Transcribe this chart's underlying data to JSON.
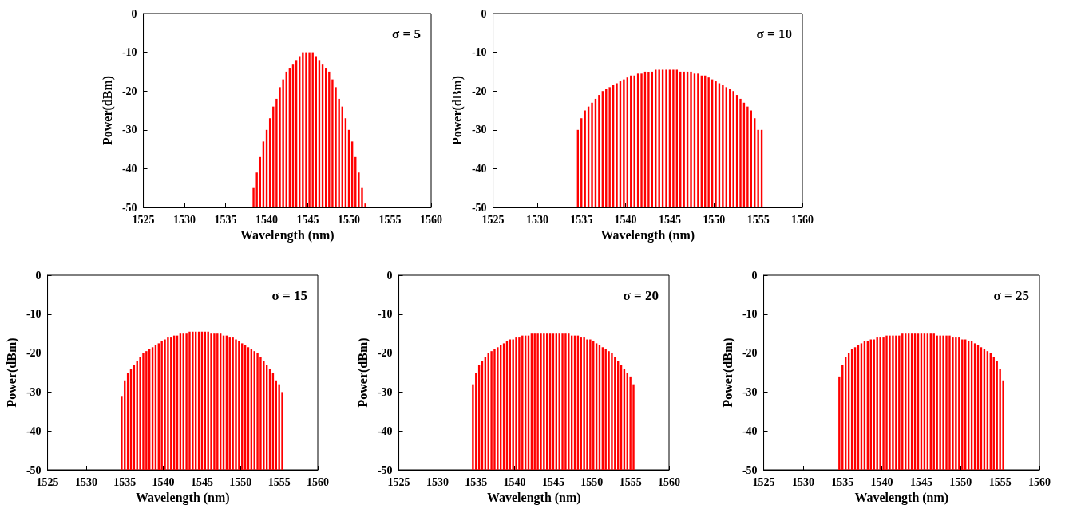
{
  "chart_data": [
    {
      "type": "bar",
      "title": "σ = 5",
      "xlabel": "Wavelength (nm)",
      "ylabel": "Power(dBm)",
      "color": "#ff0000",
      "xlim": [
        1525,
        1560
      ],
      "xticks": [
        1525,
        1530,
        1535,
        1540,
        1545,
        1550,
        1555,
        1560
      ],
      "ylim": [
        -50,
        0
      ],
      "yticks": [
        -50,
        -40,
        -30,
        -20,
        -10,
        0
      ],
      "x": [
        1538.4,
        1538.8,
        1539.2,
        1539.6,
        1540.0,
        1540.4,
        1540.8,
        1541.2,
        1541.6,
        1542.0,
        1542.4,
        1542.8,
        1543.2,
        1543.6,
        1544.0,
        1544.4,
        1544.8,
        1545.2,
        1545.6,
        1546.0,
        1546.4,
        1546.8,
        1547.2,
        1547.6,
        1548.0,
        1548.4,
        1548.8,
        1549.2,
        1549.6,
        1550.0,
        1550.4,
        1550.8,
        1551.2,
        1551.6,
        1552.0
      ],
      "base": [
        -50,
        -50,
        -50,
        -50,
        -50,
        -50,
        -50,
        -50,
        -50,
        -50,
        -50,
        -50,
        -50,
        -50,
        -50,
        -50,
        -50,
        -50,
        -50,
        -50,
        -50,
        -50,
        -50,
        -50,
        -50,
        -50,
        -50,
        -50,
        -50,
        -50,
        -50,
        -50,
        -50,
        -50,
        -50
      ],
      "values": [
        5,
        9,
        13,
        17,
        20,
        23,
        26,
        28,
        31,
        33,
        35,
        36,
        37,
        38,
        39,
        40,
        40,
        40,
        40,
        39,
        38,
        37,
        36,
        35,
        33,
        31,
        28,
        26,
        23,
        20,
        17,
        13,
        9,
        5,
        1
      ]
    },
    {
      "type": "bar",
      "title": "σ = 10",
      "xlabel": "Wavelength (nm)",
      "ylabel": "Power(dBm)",
      "color": "#ff0000",
      "xlim": [
        1525,
        1560
      ],
      "xticks": [
        1525,
        1530,
        1535,
        1540,
        1545,
        1550,
        1555,
        1560
      ],
      "ylim": [
        -50,
        0
      ],
      "yticks": [
        -50,
        -40,
        -30,
        -20,
        -10,
        0
      ],
      "x": [
        1534.6,
        1535.0,
        1535.4,
        1535.8,
        1536.2,
        1536.6,
        1537.0,
        1537.4,
        1537.8,
        1538.2,
        1538.6,
        1539.0,
        1539.4,
        1539.8,
        1540.2,
        1540.6,
        1541.0,
        1541.4,
        1541.8,
        1542.2,
        1542.6,
        1543.0,
        1543.4,
        1543.8,
        1544.2,
        1544.6,
        1545.0,
        1545.4,
        1545.8,
        1546.2,
        1546.6,
        1547.0,
        1547.4,
        1547.8,
        1548.2,
        1548.6,
        1549.0,
        1549.4,
        1549.8,
        1550.2,
        1550.6,
        1551.0,
        1551.4,
        1551.8,
        1552.2,
        1552.6,
        1553.0,
        1553.4,
        1553.8,
        1554.2,
        1554.6,
        1555.0,
        1555.4
      ],
      "base": [
        -50,
        -50,
        -50,
        -50,
        -50,
        -50,
        -50,
        -50,
        -50,
        -50,
        -50,
        -50,
        -50,
        -50,
        -50,
        -50,
        -50,
        -50,
        -50,
        -50,
        -50,
        -50,
        -50,
        -50,
        -50,
        -50,
        -50,
        -50,
        -50,
        -50,
        -50,
        -50,
        -50,
        -50,
        -50,
        -50,
        -50,
        -50,
        -50,
        -50,
        -50,
        -50,
        -50,
        -50,
        -50,
        -50,
        -50,
        -50,
        -50,
        -50,
        -50,
        -50,
        -50
      ],
      "values": [
        20,
        23,
        25,
        26,
        27,
        28,
        29,
        30,
        30.5,
        31,
        31.5,
        32,
        32.5,
        33,
        33.5,
        34,
        34,
        34.5,
        34.5,
        35,
        35,
        35,
        35.5,
        35.5,
        35.5,
        35.5,
        35.5,
        35.5,
        35.5,
        35,
        35,
        35,
        35,
        34.5,
        34.5,
        34,
        34,
        33.5,
        33,
        32.5,
        32,
        31.5,
        31,
        30.5,
        30,
        29,
        28,
        27,
        26,
        25,
        23,
        20,
        20
      ]
    },
    {
      "type": "bar",
      "title": "σ = 15",
      "xlabel": "Wavelength (nm)",
      "ylabel": "Power(dBm)",
      "color": "#ff0000",
      "xlim": [
        1525,
        1560
      ],
      "xticks": [
        1525,
        1530,
        1535,
        1540,
        1545,
        1550,
        1555,
        1560
      ],
      "ylim": [
        -50,
        0
      ],
      "yticks": [
        -50,
        -40,
        -30,
        -20,
        -10,
        0
      ],
      "x": [
        1534.6,
        1535.0,
        1535.4,
        1535.8,
        1536.2,
        1536.6,
        1537.0,
        1537.4,
        1537.8,
        1538.2,
        1538.6,
        1539.0,
        1539.4,
        1539.8,
        1540.2,
        1540.6,
        1541.0,
        1541.4,
        1541.8,
        1542.2,
        1542.6,
        1543.0,
        1543.4,
        1543.8,
        1544.2,
        1544.6,
        1545.0,
        1545.4,
        1545.8,
        1546.2,
        1546.6,
        1547.0,
        1547.4,
        1547.8,
        1548.2,
        1548.6,
        1549.0,
        1549.4,
        1549.8,
        1550.2,
        1550.6,
        1551.0,
        1551.4,
        1551.8,
        1552.2,
        1552.6,
        1553.0,
        1553.4,
        1553.8,
        1554.2,
        1554.6,
        1555.0,
        1555.4
      ],
      "base": [
        -50,
        -50,
        -50,
        -50,
        -50,
        -50,
        -50,
        -50,
        -50,
        -50,
        -50,
        -50,
        -50,
        -50,
        -50,
        -50,
        -50,
        -50,
        -50,
        -50,
        -50,
        -50,
        -50,
        -50,
        -50,
        -50,
        -50,
        -50,
        -50,
        -50,
        -50,
        -50,
        -50,
        -50,
        -50,
        -50,
        -50,
        -50,
        -50,
        -50,
        -50,
        -50,
        -50,
        -50,
        -50,
        -50,
        -50,
        -50,
        -50,
        -50,
        -50,
        -50,
        -50
      ],
      "values": [
        19,
        23,
        25,
        26,
        27,
        28,
        29,
        30,
        30.5,
        31,
        31.5,
        32,
        32.5,
        33,
        33.5,
        34,
        34,
        34.5,
        34.5,
        35,
        35,
        35,
        35.5,
        35.5,
        35.5,
        35.5,
        35.5,
        35.5,
        35.5,
        35,
        35,
        35,
        35,
        34.5,
        34.5,
        34,
        34,
        33.5,
        33,
        32.5,
        32,
        31.5,
        31,
        30.5,
        30,
        29,
        28,
        27,
        26,
        25,
        23,
        22,
        20
      ]
    },
    {
      "type": "bar",
      "title": "σ = 20",
      "xlabel": "Wavelength (nm)",
      "ylabel": "Power(dBm)",
      "color": "#ff0000",
      "xlim": [
        1525,
        1560
      ],
      "xticks": [
        1525,
        1530,
        1535,
        1540,
        1545,
        1550,
        1555,
        1560
      ],
      "ylim": [
        -50,
        0
      ],
      "yticks": [
        -50,
        -40,
        -30,
        -20,
        -10,
        0
      ],
      "x": [
        1534.6,
        1535.0,
        1535.4,
        1535.8,
        1536.2,
        1536.6,
        1537.0,
        1537.4,
        1537.8,
        1538.2,
        1538.6,
        1539.0,
        1539.4,
        1539.8,
        1540.2,
        1540.6,
        1541.0,
        1541.4,
        1541.8,
        1542.2,
        1542.6,
        1543.0,
        1543.4,
        1543.8,
        1544.2,
        1544.6,
        1545.0,
        1545.4,
        1545.8,
        1546.2,
        1546.6,
        1547.0,
        1547.4,
        1547.8,
        1548.2,
        1548.6,
        1549.0,
        1549.4,
        1549.8,
        1550.2,
        1550.6,
        1551.0,
        1551.4,
        1551.8,
        1552.2,
        1552.6,
        1553.0,
        1553.4,
        1553.8,
        1554.2,
        1554.6,
        1555.0,
        1555.4
      ],
      "base": [
        -50,
        -50,
        -50,
        -50,
        -50,
        -50,
        -50,
        -50,
        -50,
        -50,
        -50,
        -50,
        -50,
        -50,
        -50,
        -50,
        -50,
        -50,
        -50,
        -50,
        -50,
        -50,
        -50,
        -50,
        -50,
        -50,
        -50,
        -50,
        -50,
        -50,
        -50,
        -50,
        -50,
        -50,
        -50,
        -50,
        -50,
        -50,
        -50,
        -50,
        -50,
        -50,
        -50,
        -50,
        -50,
        -50,
        -50,
        -50,
        -50,
        -50,
        -50,
        -50,
        -50
      ],
      "values": [
        22,
        25,
        27,
        28,
        29,
        30,
        30.5,
        31,
        31.5,
        32,
        32.5,
        33,
        33.5,
        33.5,
        34,
        34,
        34.5,
        34.5,
        34.5,
        35,
        35,
        35,
        35,
        35,
        35,
        35,
        35,
        35,
        35,
        35,
        35,
        35,
        34.5,
        34.5,
        34.5,
        34,
        34,
        33.5,
        33.5,
        33,
        32.5,
        32,
        31.5,
        31,
        30.5,
        30,
        29,
        28,
        27,
        26,
        25,
        24,
        22
      ]
    },
    {
      "type": "bar",
      "title": "σ = 25",
      "xlabel": "Wavelength (nm)",
      "ylabel": "Power(dBm)",
      "color": "#ff0000",
      "xlim": [
        1525,
        1560
      ],
      "xticks": [
        1525,
        1530,
        1535,
        1540,
        1545,
        1550,
        1555,
        1560
      ],
      "ylim": [
        -50,
        0
      ],
      "yticks": [
        -50,
        -40,
        -30,
        -20,
        -10,
        0
      ],
      "x": [
        1534.6,
        1535.0,
        1535.4,
        1535.8,
        1536.2,
        1536.6,
        1537.0,
        1537.4,
        1537.8,
        1538.2,
        1538.6,
        1539.0,
        1539.4,
        1539.8,
        1540.2,
        1540.6,
        1541.0,
        1541.4,
        1541.8,
        1542.2,
        1542.6,
        1543.0,
        1543.4,
        1543.8,
        1544.2,
        1544.6,
        1545.0,
        1545.4,
        1545.8,
        1546.2,
        1546.6,
        1547.0,
        1547.4,
        1547.8,
        1548.2,
        1548.6,
        1549.0,
        1549.4,
        1549.8,
        1550.2,
        1550.6,
        1551.0,
        1551.4,
        1551.8,
        1552.2,
        1552.6,
        1553.0,
        1553.4,
        1553.8,
        1554.2,
        1554.6,
        1555.0,
        1555.4
      ],
      "base": [
        -50,
        -50,
        -50,
        -50,
        -50,
        -50,
        -50,
        -50,
        -50,
        -50,
        -50,
        -50,
        -50,
        -50,
        -50,
        -50,
        -50,
        -50,
        -50,
        -50,
        -50,
        -50,
        -50,
        -50,
        -50,
        -50,
        -50,
        -50,
        -50,
        -50,
        -50,
        -50,
        -50,
        -50,
        -50,
        -50,
        -50,
        -50,
        -50,
        -50,
        -50,
        -50,
        -50,
        -50,
        -50,
        -50,
        -50,
        -50,
        -50,
        -50,
        -50,
        -50,
        -50
      ],
      "values": [
        24,
        27,
        29,
        30,
        31,
        31.5,
        32,
        32.5,
        33,
        33,
        33.5,
        33.5,
        34,
        34,
        34,
        34.5,
        34.5,
        34.5,
        34.5,
        34.5,
        35,
        35,
        35,
        35,
        35,
        35,
        35,
        35,
        35,
        35,
        35,
        34.5,
        34.5,
        34.5,
        34.5,
        34.5,
        34,
        34,
        34,
        33.5,
        33.5,
        33,
        33,
        32.5,
        32,
        31.5,
        31,
        30.5,
        30,
        29,
        28,
        26,
        23
      ]
    }
  ]
}
